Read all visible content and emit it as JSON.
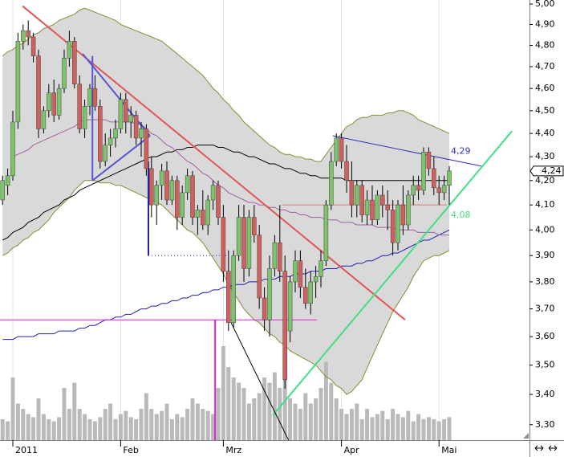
{
  "chart_data": {
    "type": "candlestick",
    "categories": [
      null,
      null,
      "2011",
      null,
      null,
      null,
      null,
      null,
      null,
      null,
      null,
      null,
      null,
      null,
      null,
      null,
      null,
      null,
      null,
      null,
      null,
      null,
      null,
      "Feb",
      null,
      null,
      null,
      null,
      null,
      null,
      null,
      null,
      null,
      null,
      null,
      null,
      null,
      null,
      null,
      null,
      null,
      null,
      null,
      "Mrz",
      null,
      null,
      null,
      null,
      null,
      null,
      null,
      null,
      null,
      null,
      null,
      null,
      null,
      null,
      null,
      null,
      null,
      null,
      null,
      null,
      null,
      null,
      "Apr",
      null,
      null,
      null,
      null,
      null,
      null,
      null,
      null,
      null,
      null,
      null,
      null,
      null,
      null,
      null,
      null,
      null,
      null,
      "Mai",
      null,
      null
    ],
    "open": [
      4.12,
      4.18,
      4.22,
      4.45,
      4.82,
      4.87,
      4.84,
      4.75,
      4.42,
      4.5,
      4.58,
      4.48,
      4.6,
      4.74,
      4.82,
      4.62,
      4.42,
      4.52,
      4.6,
      4.52,
      4.28,
      4.35,
      4.38,
      4.42,
      4.55,
      4.45,
      4.48,
      4.38,
      4.42,
      4.25,
      4.1,
      4.18,
      4.24,
      4.12,
      4.2,
      4.05,
      4.15,
      4.22,
      4.05,
      4.08,
      4.02,
      4.12,
      4.18,
      4.05,
      3.84,
      3.65,
      3.9,
      4.05,
      3.85,
      4.05,
      3.98,
      3.74,
      3.66,
      3.85,
      3.95,
      3.84,
      3.62,
      3.8,
      3.88,
      3.78,
      3.72,
      3.8,
      3.82,
      3.88,
      4.1,
      4.28,
      4.38,
      4.28,
      4.2,
      4.1,
      4.18,
      4.06,
      4.12,
      4.04,
      4.14,
      4.1,
      4.08,
      3.95,
      4.1,
      4.02,
      4.14,
      4.18,
      4.16,
      4.32,
      4.25,
      4.17,
      4.15,
      4.18
    ],
    "high": [
      4.22,
      4.25,
      4.5,
      4.86,
      4.9,
      4.92,
      4.86,
      4.78,
      4.52,
      4.62,
      4.64,
      4.62,
      4.78,
      4.87,
      4.84,
      4.66,
      4.55,
      4.62,
      4.66,
      4.55,
      4.4,
      4.42,
      4.46,
      4.58,
      4.58,
      4.52,
      4.5,
      4.45,
      4.44,
      4.3,
      4.2,
      4.27,
      4.28,
      4.22,
      4.22,
      4.18,
      4.25,
      4.24,
      4.1,
      4.16,
      4.14,
      4.2,
      4.2,
      4.1,
      3.92,
      3.92,
      4.1,
      4.1,
      4.08,
      4.1,
      4.02,
      3.78,
      3.9,
      3.98,
      4.1,
      3.9,
      3.82,
      3.92,
      3.92,
      3.85,
      3.84,
      3.86,
      3.92,
      4.12,
      4.32,
      4.4,
      4.4,
      4.35,
      4.28,
      4.2,
      4.2,
      4.16,
      4.18,
      4.16,
      4.18,
      4.16,
      4.12,
      4.12,
      4.18,
      4.16,
      4.22,
      4.22,
      4.34,
      4.34,
      4.3,
      4.22,
      4.22,
      4.26
    ],
    "low": [
      4.1,
      4.14,
      4.2,
      4.42,
      4.78,
      4.8,
      4.72,
      4.38,
      4.4,
      4.47,
      4.45,
      4.46,
      4.58,
      4.7,
      4.6,
      4.4,
      4.38,
      4.48,
      4.5,
      4.25,
      4.26,
      4.3,
      4.34,
      4.4,
      4.4,
      4.38,
      4.35,
      4.3,
      4.22,
      4.05,
      4.02,
      4.12,
      4.1,
      4.1,
      4.0,
      4.02,
      4.12,
      4.02,
      3.98,
      4.0,
      3.98,
      4.08,
      4.02,
      3.8,
      3.62,
      3.63,
      3.88,
      3.8,
      3.82,
      3.95,
      3.7,
      3.62,
      3.6,
      3.82,
      3.8,
      3.42,
      3.58,
      3.76,
      3.74,
      3.7,
      3.68,
      3.74,
      3.78,
      3.86,
      4.08,
      4.26,
      4.25,
      4.15,
      4.05,
      4.05,
      4.03,
      4.02,
      4.02,
      4.02,
      4.05,
      4.0,
      3.9,
      3.92,
      3.98,
      4.0,
      4.1,
      4.12,
      4.14,
      4.22,
      4.14,
      4.1,
      4.12,
      4.1
    ],
    "close": [
      4.2,
      4.22,
      4.45,
      4.82,
      4.87,
      4.84,
      4.75,
      4.42,
      4.5,
      4.58,
      4.48,
      4.6,
      4.74,
      4.82,
      4.62,
      4.42,
      4.52,
      4.6,
      4.52,
      4.28,
      4.35,
      4.38,
      4.42,
      4.55,
      4.45,
      4.48,
      4.38,
      4.42,
      4.25,
      4.1,
      4.18,
      4.24,
      4.12,
      4.2,
      4.05,
      4.15,
      4.22,
      4.05,
      4.08,
      4.02,
      4.12,
      4.18,
      4.05,
      3.84,
      3.65,
      3.9,
      4.05,
      3.85,
      4.05,
      3.98,
      3.74,
      3.66,
      3.85,
      3.95,
      3.84,
      3.45,
      3.8,
      3.88,
      3.78,
      3.72,
      3.8,
      3.82,
      3.88,
      4.1,
      4.28,
      4.38,
      4.28,
      4.2,
      4.1,
      4.18,
      4.06,
      4.12,
      4.04,
      4.14,
      4.1,
      4.08,
      3.95,
      4.1,
      4.02,
      4.14,
      4.18,
      4.16,
      4.32,
      4.25,
      4.17,
      4.15,
      4.18,
      4.24
    ],
    "volume": [
      20,
      18,
      60,
      35,
      30,
      25,
      22,
      40,
      25,
      20,
      18,
      22,
      50,
      30,
      55,
      30,
      25,
      20,
      18,
      22,
      30,
      35,
      20,
      25,
      28,
      22,
      20,
      30,
      45,
      30,
      25,
      28,
      35,
      20,
      25,
      22,
      30,
      40,
      35,
      30,
      28,
      25,
      50,
      90,
      70,
      60,
      55,
      50,
      35,
      40,
      45,
      60,
      55,
      65,
      50,
      70,
      40,
      35,
      30,
      45,
      35,
      40,
      50,
      75,
      55,
      40,
      30,
      25,
      30,
      35,
      20,
      30,
      22,
      25,
      28,
      20,
      30,
      25,
      22,
      28,
      18,
      25,
      20,
      22,
      20,
      18,
      20,
      22
    ],
    "vlim": [
      0,
      100
    ],
    "up_color": "#7cc36a",
    "down_color": "#d0605c",
    "volume_color": "#b9b9b9",
    "band": {
      "color": "#8a8a30",
      "fill": "#d9d9d9",
      "upper": [
        4.75,
        4.77,
        4.78,
        4.8,
        4.81,
        4.83,
        4.85,
        4.86,
        4.88,
        4.89,
        4.9,
        4.92,
        4.93,
        4.94,
        4.95,
        4.97,
        4.98,
        4.97,
        4.96,
        4.95,
        4.94,
        4.93,
        4.92,
        4.9,
        4.89,
        4.88,
        4.87,
        4.86,
        4.85,
        4.84,
        4.83,
        4.82,
        4.8,
        4.78,
        4.76,
        4.74,
        4.72,
        4.7,
        4.68,
        4.66,
        4.63,
        4.6,
        4.58,
        4.55,
        4.53,
        4.5,
        4.48,
        4.45,
        4.43,
        4.41,
        4.39,
        4.37,
        4.35,
        4.34,
        4.32,
        4.31,
        4.31,
        4.3,
        4.3,
        4.29,
        4.29,
        4.28,
        4.28,
        4.31,
        4.34,
        4.37,
        4.4,
        4.43,
        4.44,
        4.46,
        4.47,
        4.47,
        4.48,
        4.48,
        4.48,
        4.49,
        4.49,
        4.5,
        4.5,
        4.49,
        4.48,
        4.46,
        4.45,
        4.44,
        4.43,
        4.42,
        4.41,
        4.4
      ],
      "lower": [
        3.9,
        3.91,
        3.93,
        3.94,
        3.96,
        3.97,
        3.99,
        4.0,
        4.02,
        4.04,
        4.07,
        4.09,
        4.11,
        4.13,
        4.16,
        4.18,
        4.2,
        4.2,
        4.2,
        4.19,
        4.19,
        4.19,
        4.18,
        4.18,
        4.17,
        4.16,
        4.15,
        4.14,
        4.13,
        4.12,
        4.11,
        4.1,
        4.08,
        4.06,
        4.04,
        4.02,
        4.0,
        3.99,
        3.97,
        3.95,
        3.92,
        3.89,
        3.86,
        3.83,
        3.79,
        3.76,
        3.73,
        3.7,
        3.68,
        3.66,
        3.65,
        3.63,
        3.61,
        3.6,
        3.58,
        3.57,
        3.55,
        3.54,
        3.53,
        3.52,
        3.51,
        3.5,
        3.48,
        3.46,
        3.45,
        3.43,
        3.42,
        3.4,
        3.41,
        3.43,
        3.45,
        3.49,
        3.53,
        3.57,
        3.61,
        3.65,
        3.69,
        3.72,
        3.75,
        3.78,
        3.82,
        3.85,
        3.88,
        3.89,
        3.9,
        3.9,
        3.91,
        3.92
      ]
    },
    "overlays": [
      {
        "color": "#000000",
        "values": [
          3.96,
          3.97,
          3.99,
          4.0,
          4.01,
          4.03,
          4.04,
          4.05,
          4.07,
          4.08,
          4.09,
          4.1,
          4.12,
          4.13,
          4.14,
          4.16,
          4.17,
          4.18,
          4.19,
          4.2,
          4.21,
          4.22,
          4.23,
          4.24,
          4.25,
          4.26,
          4.27,
          4.28,
          4.29,
          4.3,
          4.3,
          4.31,
          4.32,
          4.32,
          4.33,
          4.33,
          4.34,
          4.34,
          4.35,
          4.35,
          4.35,
          4.35,
          4.34,
          4.34,
          4.33,
          4.32,
          4.32,
          4.31,
          4.3,
          4.3,
          4.29,
          4.28,
          4.27,
          4.27,
          4.26,
          4.25,
          4.25,
          4.24,
          4.23,
          4.23,
          4.22,
          4.22,
          4.21,
          4.21,
          4.21,
          4.21,
          4.21,
          4.2,
          4.2,
          4.2,
          4.2,
          4.2,
          4.2,
          4.2,
          4.2,
          4.2,
          4.2,
          4.2,
          4.2,
          4.2,
          4.2,
          4.2,
          4.2,
          4.2,
          4.2,
          4.2,
          4.2,
          4.2
        ]
      },
      {
        "color": "#2020b0",
        "values": [
          3.59,
          3.59,
          3.59,
          3.6,
          3.6,
          3.6,
          3.6,
          3.61,
          3.61,
          3.61,
          3.61,
          3.62,
          3.62,
          3.62,
          3.62,
          3.63,
          3.63,
          3.64,
          3.64,
          3.65,
          3.66,
          3.66,
          3.67,
          3.67,
          3.68,
          3.68,
          3.69,
          3.7,
          3.7,
          3.71,
          3.71,
          3.72,
          3.72,
          3.73,
          3.73,
          3.74,
          3.74,
          3.75,
          3.75,
          3.76,
          3.76,
          3.77,
          3.77,
          3.78,
          3.78,
          3.79,
          3.79,
          3.79,
          3.8,
          3.8,
          3.8,
          3.81,
          3.81,
          3.81,
          3.82,
          3.82,
          3.82,
          3.83,
          3.83,
          3.83,
          3.84,
          3.84,
          3.84,
          3.85,
          3.85,
          3.85,
          3.86,
          3.86,
          3.86,
          3.87,
          3.87,
          3.88,
          3.88,
          3.89,
          3.9,
          3.9,
          3.91,
          3.91,
          3.92,
          3.93,
          3.94,
          3.95,
          3.96,
          3.96,
          3.97,
          3.98,
          3.99,
          4.0
        ]
      },
      {
        "color": "#a060a0",
        "values": [
          null,
          null,
          4.3,
          4.31,
          4.32,
          4.33,
          4.35,
          4.36,
          4.37,
          4.38,
          4.39,
          4.4,
          4.41,
          4.42,
          4.43,
          4.45,
          4.46,
          4.46,
          4.46,
          4.46,
          4.46,
          4.45,
          4.45,
          4.45,
          4.45,
          4.45,
          4.44,
          4.44,
          4.42,
          4.4,
          4.39,
          4.37,
          4.35,
          4.34,
          4.32,
          4.3,
          4.28,
          4.27,
          4.25,
          4.23,
          4.22,
          4.2,
          4.18,
          4.17,
          4.15,
          4.14,
          4.13,
          4.12,
          4.11,
          4.11,
          4.1,
          4.1,
          4.09,
          4.09,
          4.08,
          4.08,
          4.07,
          4.07,
          4.06,
          4.06,
          4.05,
          4.05,
          4.05,
          4.04,
          4.04,
          4.04,
          4.03,
          4.03,
          4.03,
          4.02,
          4.02,
          4.02,
          4.02,
          4.01,
          4.01,
          4.01,
          4.01,
          4.0,
          4.0,
          4.0,
          4.0,
          3.99,
          3.99,
          3.99,
          3.99,
          3.98,
          3.98,
          3.98
        ]
      }
    ],
    "trendlines": [
      {
        "color": "#e05555",
        "width": 2,
        "points": [
          [
            3.9,
            4.99
          ],
          [
            78.4,
            3.66
          ]
        ]
      },
      {
        "color": "#5555d5",
        "width": 2,
        "points": [
          [
            15.6,
            4.76
          ],
          [
            28.7,
            4.39
          ]
        ]
      },
      {
        "color": "#5555d5",
        "width": 2,
        "points": [
          [
            17.5,
            4.75
          ],
          [
            17.5,
            4.2
          ]
        ]
      },
      {
        "color": "#5555d5",
        "width": 2,
        "points": [
          [
            17.5,
            4.2
          ],
          [
            28.7,
            4.39
          ]
        ]
      },
      {
        "color": "#2020a0",
        "width": 2,
        "points": [
          [
            28.4,
            4.28
          ],
          [
            28.4,
            3.9
          ]
        ]
      },
      {
        "color": "#2020a0",
        "width": 1,
        "dotted": true,
        "points": [
          [
            28.4,
            3.9
          ],
          [
            44,
            3.9
          ]
        ]
      },
      {
        "color": "#3030c0",
        "width": 1,
        "points": [
          [
            64.3,
            4.39
          ],
          [
            93.3,
            4.26
          ]
        ],
        "label": "4,29",
        "label_side": "above"
      },
      {
        "color": "#40e080",
        "width": 2,
        "points": [
          [
            52.6,
            3.33
          ],
          [
            99.2,
            4.41
          ]
        ],
        "label": "4,08",
        "label_side": "below"
      },
      {
        "color": "#000000",
        "width": 1,
        "points": [
          [
            44.5,
            3.65
          ],
          [
            55.7,
            3.25
          ]
        ]
      },
      {
        "color": "#e020e0",
        "width": 1,
        "points": [
          [
            -0.5,
            3.66
          ],
          [
            61.2,
            3.66
          ]
        ]
      },
      {
        "color": "#e020e0",
        "width": 2,
        "points": [
          [
            41.4,
            3.66
          ],
          [
            41.4,
            3.25
          ]
        ]
      },
      {
        "color": "#d08080",
        "width": 1,
        "points": [
          [
            54.5,
            4.1
          ],
          [
            86.5,
            4.1
          ]
        ]
      }
    ],
    "last_label": "4,24",
    "ylog": true,
    "ylim": [
      3.25,
      5.02
    ],
    "yticks": [
      {
        "value": 5.0,
        "label": "5,00"
      },
      {
        "value": 4.9,
        "label": "4,90"
      },
      {
        "value": 4.8,
        "label": "4,80"
      },
      {
        "value": 4.7,
        "label": "4,70"
      },
      {
        "value": 4.6,
        "label": "4,60"
      },
      {
        "value": 4.5,
        "label": "4,50"
      },
      {
        "value": 4.4,
        "label": "4,40"
      },
      {
        "value": 4.3,
        "label": "4,30"
      },
      {
        "value": 4.2,
        "label": "4,20"
      },
      {
        "value": 4.1,
        "label": "4,10"
      },
      {
        "value": 4.0,
        "label": "4,00"
      },
      {
        "value": 3.9,
        "label": "3,90"
      },
      {
        "value": 3.8,
        "label": "3,80"
      },
      {
        "value": 3.7,
        "label": "3,70"
      },
      {
        "value": 3.6,
        "label": "3,60"
      },
      {
        "value": 3.5,
        "label": "3,50"
      },
      {
        "value": 3.4,
        "label": "3,40"
      },
      {
        "value": 3.3,
        "label": "3,30"
      }
    ]
  }
}
